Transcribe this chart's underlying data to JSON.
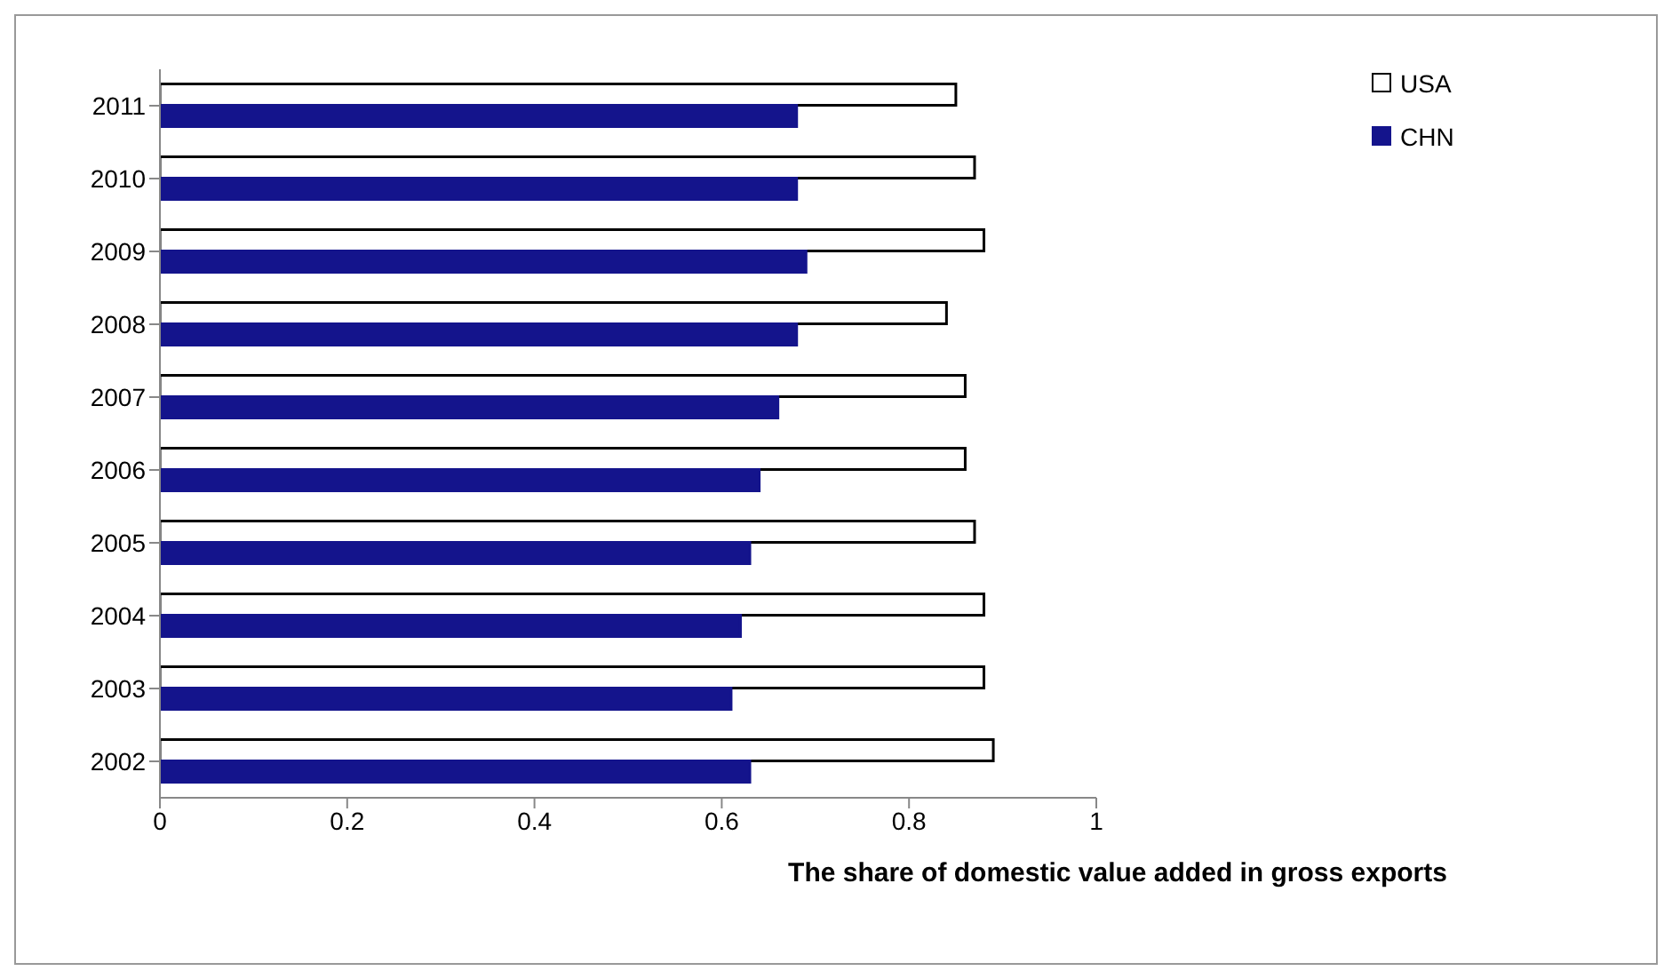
{
  "chart_data": {
    "type": "bar",
    "orientation": "horizontal",
    "xlabel": "The share of domestic value added in gross exports",
    "categories": [
      "2011",
      "2010",
      "2009",
      "2008",
      "2007",
      "2006",
      "2005",
      "2004",
      "2003",
      "2002"
    ],
    "series": [
      {
        "name": "USA",
        "color": "#ffffff",
        "values": [
          0.85,
          0.87,
          0.88,
          0.84,
          0.86,
          0.86,
          0.87,
          0.88,
          0.88,
          0.89
        ]
      },
      {
        "name": "CHN",
        "color": "#14148c",
        "values": [
          0.68,
          0.68,
          0.69,
          0.68,
          0.66,
          0.64,
          0.63,
          0.62,
          0.61,
          0.63
        ]
      }
    ],
    "xlim": [
      0,
      1
    ],
    "xticks": [
      0,
      0.2,
      0.4,
      0.6,
      0.8,
      1
    ],
    "grid": false,
    "legend": "top right"
  }
}
